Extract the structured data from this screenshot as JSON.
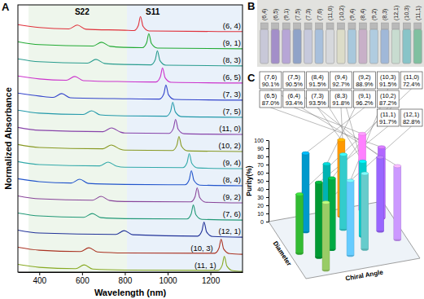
{
  "chart_data": [
    {
      "panel": "A",
      "type": "line",
      "x_label": "Wavelength (nm)",
      "y_label": "Normalized Absorbance",
      "xlim": [
        300,
        1350
      ],
      "xticks": [
        400,
        600,
        800,
        1000,
        1200
      ],
      "ylim": [
        0,
        15.6
      ],
      "tick_labels": "x",
      "bands": [
        {
          "range": [
            350,
            810
          ],
          "color": "#eef6ec"
        },
        {
          "range": [
            810,
            1350
          ],
          "color": "#e9f1fa"
        }
      ],
      "annotations": [
        {
          "text": "S22",
          "x": 600
        },
        {
          "text": "S11",
          "x": 930
        }
      ],
      "series": [
        {
          "name": "(6, 4)",
          "color": "#e0303a",
          "x": [
            300,
            400,
            538,
            578,
            618,
            800,
            843,
            863,
            873,
            885,
            913,
            1350
          ],
          "values": [
            14.45,
            14.28,
            14.2,
            14.42,
            14.18,
            14.12,
            14.1,
            14.4,
            14.92,
            14.35,
            14.08,
            14.04
          ]
        },
        {
          "name": "(9, 1)",
          "color": "#22aa33",
          "x": [
            300,
            400,
            651,
            691,
            731,
            800,
            882,
            902,
            912,
            924,
            952,
            1350
          ],
          "values": [
            13.45,
            13.28,
            13.2,
            13.42,
            13.18,
            13.12,
            13.1,
            13.4,
            13.92,
            13.35,
            13.08,
            13.04
          ]
        },
        {
          "name": "(8, 3)",
          "color": "#2a9d8f",
          "x": [
            300,
            400,
            625,
            665,
            705,
            800,
            922,
            942,
            952,
            964,
            992,
            1350
          ],
          "values": [
            12.45,
            12.28,
            12.2,
            12.42,
            12.18,
            12.12,
            12.1,
            12.4,
            12.92,
            12.35,
            12.08,
            12.04
          ]
        },
        {
          "name": "(6, 5)",
          "color": "#cc33cc",
          "x": [
            300,
            400,
            526,
            566,
            606,
            800,
            946,
            966,
            976,
            988,
            1016,
            1350
          ],
          "values": [
            11.45,
            11.28,
            11.2,
            11.42,
            11.18,
            11.12,
            11.1,
            11.4,
            11.92,
            11.35,
            11.08,
            11.04
          ]
        },
        {
          "name": "(7, 3)",
          "color": "#3344cc",
          "x": [
            300,
            400,
            465,
            505,
            545,
            800,
            962,
            982,
            992,
            1004,
            1032,
            1350
          ],
          "values": [
            10.45,
            10.28,
            10.2,
            10.42,
            10.18,
            10.12,
            10.1,
            10.4,
            10.92,
            10.35,
            10.08,
            10.04
          ]
        },
        {
          "name": "(7, 5)",
          "color": "#2299aa",
          "x": [
            300,
            400,
            605,
            645,
            685,
            800,
            994,
            1014,
            1024,
            1036,
            1064,
            1350
          ],
          "values": [
            9.45,
            9.28,
            9.2,
            9.42,
            9.18,
            9.12,
            9.1,
            9.4,
            9.92,
            9.35,
            9.08,
            9.04
          ]
        },
        {
          "name": "(11, 0)",
          "color": "#8844aa",
          "x": [
            300,
            400,
            698,
            738,
            778,
            800,
            1007,
            1027,
            1037,
            1049,
            1077,
            1350
          ],
          "values": [
            8.45,
            8.28,
            8.2,
            8.42,
            8.18,
            8.12,
            8.1,
            8.4,
            8.92,
            8.35,
            8.08,
            8.04
          ]
        },
        {
          "name": "(10, 2)",
          "color": "#889922",
          "x": [
            300,
            400,
            697,
            737,
            777,
            800,
            1023,
            1043,
            1053,
            1065,
            1093,
            1350
          ],
          "values": [
            7.45,
            7.28,
            7.2,
            7.42,
            7.18,
            7.12,
            7.1,
            7.4,
            7.92,
            7.35,
            7.08,
            7.04
          ]
        },
        {
          "name": "(9, 4)",
          "color": "#33aaaa",
          "x": [
            300,
            400,
            682,
            722,
            762,
            800,
            1071,
            1091,
            1101,
            1113,
            1141,
            1350
          ],
          "values": [
            6.45,
            6.28,
            6.2,
            6.42,
            6.18,
            6.12,
            6.1,
            6.4,
            6.92,
            6.35,
            6.08,
            6.04
          ]
        },
        {
          "name": "(8, 4)",
          "color": "#2255cc",
          "x": [
            300,
            400,
            549,
            589,
            629,
            800,
            1081,
            1101,
            1111,
            1123,
            1151,
            1350
          ],
          "values": [
            5.45,
            5.28,
            5.2,
            5.42,
            5.18,
            5.12,
            5.1,
            5.4,
            5.92,
            5.35,
            5.08,
            5.04
          ]
        },
        {
          "name": "(9, 2)",
          "color": "#884499",
          "x": [
            300,
            400,
            649,
            689,
            729,
            800,
            1108,
            1128,
            1138,
            1150,
            1178,
            1350
          ],
          "values": [
            4.45,
            4.28,
            4.2,
            4.42,
            4.18,
            4.12,
            4.1,
            4.4,
            4.92,
            4.35,
            4.08,
            4.04
          ]
        },
        {
          "name": "(7, 6)",
          "color": "#229977",
          "x": [
            300,
            400,
            608,
            648,
            688,
            800,
            1090,
            1110,
            1120,
            1132,
            1160,
            1350
          ],
          "values": [
            3.45,
            3.28,
            3.2,
            3.42,
            3.18,
            3.12,
            3.1,
            3.4,
            3.92,
            3.35,
            3.08,
            3.04
          ]
        },
        {
          "name": "(12, 1)",
          "color": "#223399",
          "x": [
            300,
            400,
            757,
            797,
            837,
            1140,
            1160,
            1170,
            1182,
            1210,
            1350
          ],
          "values": [
            2.45,
            2.28,
            2.2,
            2.42,
            2.18,
            2.1,
            2.4,
            2.92,
            2.35,
            2.08,
            2.04
          ]
        },
        {
          "name": "(10, 3)",
          "color": "#aa3322",
          "x": [
            300,
            400,
            592,
            632,
            672,
            800,
            1220,
            1240,
            1250,
            1262,
            1290,
            1350
          ],
          "values": [
            1.45,
            1.28,
            1.2,
            1.42,
            1.18,
            1.12,
            1.1,
            1.4,
            1.92,
            1.35,
            1.08,
            1.04
          ]
        },
        {
          "name": "(11, 1)",
          "color": "#88aa22",
          "x": [
            300,
            400,
            570,
            610,
            650,
            800,
            1235,
            1255,
            1265,
            1277,
            1305,
            1350
          ],
          "values": [
            0.45,
            0.28,
            0.2,
            0.42,
            0.18,
            0.12,
            0.1,
            0.4,
            0.92,
            0.35,
            0.08,
            0.04
          ]
        }
      ]
    },
    {
      "panel": "C",
      "type": "bar3d",
      "x_label": "Chiral Angle",
      "y_label": "Purity(%)",
      "z_label": "Diameter",
      "ylim": [
        0,
        100
      ],
      "yticks": [
        0,
        10,
        20,
        30,
        40,
        50,
        60,
        70,
        80,
        90,
        100
      ],
      "data_labels": true,
      "categories": [
        "(7,6)",
        "(7,5)",
        "(8,4)",
        "(9,4)",
        "(9,2)",
        "(10,3)",
        "(11,0)",
        "(6,5)",
        "(6,4)",
        "(7,3)",
        "(8,3)",
        "(9,1)",
        "(10,2)",
        "(11,1)",
        "(12,1)"
      ],
      "values": [
        90.1,
        90.5,
        91.5,
        92.7,
        88.9,
        91.5,
        72.4,
        87.0,
        93.4,
        93.5,
        91.8,
        96.2,
        87.2,
        91.7,
        82.8
      ],
      "value_labels": [
        "90.1%",
        "90.5%",
        "91.5%",
        "92.7%",
        "88.9%",
        "91.5%",
        "72.4%",
        "87.0%",
        "93.4%",
        "93.5%",
        "91.8%",
        "96.2%",
        "87.2%",
        "91.7%",
        "82.8%"
      ],
      "colors": [
        "#cc99ff",
        "#9966ff",
        "#00cccc",
        "#66cccc",
        "#00b3b3",
        "#66ccff",
        "#33bb33",
        "#b266ff",
        "#ff80ff",
        "#ff9900",
        "#33cccc",
        "#0099cc",
        "#00aa44",
        "#009933",
        "#99cc66"
      ]
    }
  ],
  "photo": {
    "panel": "B",
    "vials": [
      {
        "label": "(6,4)",
        "color": "#c8c8d8"
      },
      {
        "label": "(6,5)",
        "color": "#a38fc9"
      },
      {
        "label": "(9,1)",
        "color": "#b7a6d6"
      },
      {
        "label": "(7,5)",
        "color": "#8fa3c8"
      },
      {
        "label": "(7,3)",
        "color": "#c6c9dc"
      },
      {
        "label": "(7,6)",
        "color": "#a8c0dc"
      },
      {
        "label": "(11,0)",
        "color": "#d6d8dc"
      },
      {
        "label": "(10,2)",
        "color": "#dcdcc8"
      },
      {
        "label": "(9,4)",
        "color": "#a8c8dc"
      },
      {
        "label": "(8,4)",
        "color": "#c8b0c8"
      },
      {
        "label": "(9,2)",
        "color": "#b0cce0"
      },
      {
        "label": "(8,3)",
        "color": "#a0b8d8"
      },
      {
        "label": "(12,1)",
        "color": "#c8dcd0"
      },
      {
        "label": "(10,3)",
        "color": "#88c4c8"
      },
      {
        "label": "(11,1)",
        "color": "#80c0a0"
      }
    ]
  }
}
